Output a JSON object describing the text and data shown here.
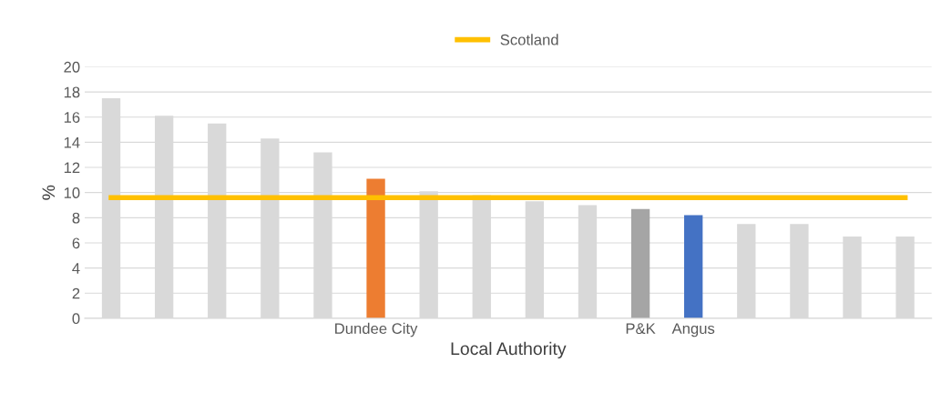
{
  "chart_data": {
    "type": "bar",
    "xlabel": "Local Authority",
    "ylabel": "%",
    "categories": [
      null,
      null,
      null,
      null,
      null,
      "Dundee City",
      null,
      null,
      null,
      null,
      "P&K",
      "Angus",
      null,
      null,
      null,
      null
    ],
    "series": [
      {
        "colors": [
          "#d9d9d9",
          "#d9d9d9",
          "#d9d9d9",
          "#d9d9d9",
          "#d9d9d9",
          "#ed7d31",
          "#d9d9d9",
          "#d9d9d9",
          "#d9d9d9",
          "#d9d9d9",
          "#a5a5a5",
          "#4472c4",
          "#d9d9d9",
          "#d9d9d9",
          "#d9d9d9",
          "#d9d9d9"
        ],
        "values": [
          17.5,
          16.1,
          15.5,
          14.3,
          13.2,
          11.1,
          10.1,
          9.8,
          9.3,
          9.0,
          8.7,
          8.2,
          7.5,
          7.5,
          6.5,
          6.5
        ]
      },
      {
        "type": "line",
        "name": "Scotland",
        "color": "#ffc000",
        "values": [
          9.6,
          9.6,
          9.6,
          9.6,
          9.6,
          9.6,
          9.6,
          9.6,
          9.6,
          9.6,
          9.6,
          9.6,
          9.6,
          9.6,
          9.6,
          9.6
        ]
      }
    ],
    "ylim": [
      0,
      20
    ],
    "yticks": [
      0,
      2,
      4,
      6,
      8,
      10,
      12,
      14,
      16,
      18,
      20
    ],
    "grid": "y",
    "legend": "top"
  }
}
